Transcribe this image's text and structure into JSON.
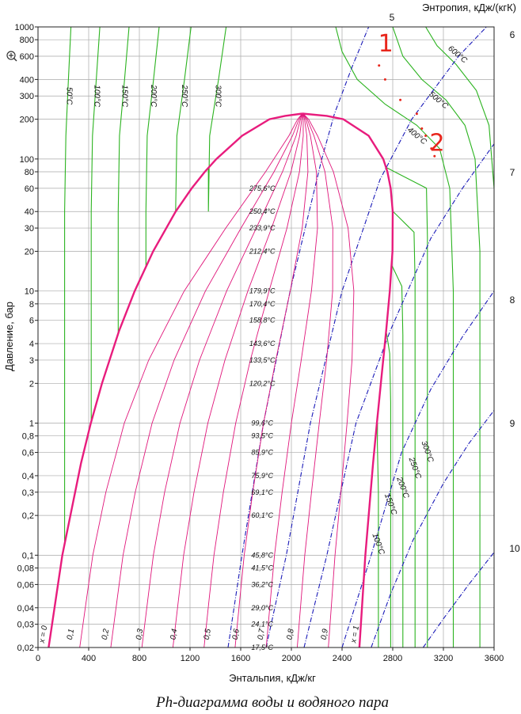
{
  "chart_data": {
    "type": "line",
    "title": "Ph-диаграмма воды и водяного пара",
    "xlabel": "Энтальпия, кДж/кг",
    "ylabel": "Давление, бар",
    "entropy_axis_label": "Энтропия, кДж/(кгК)",
    "xlim": [
      0,
      3600
    ],
    "ylim": [
      0.02,
      1000
    ],
    "yscale": "log",
    "grid": true,
    "x_ticks": [
      "0",
      "400",
      "800",
      "1200",
      "1600",
      "2000",
      "2400",
      "2800",
      "3200",
      "3600"
    ],
    "y_ticks": [
      {
        "v": 1000,
        "label": "1000"
      },
      {
        "v": 800,
        "label": "800"
      },
      {
        "v": 600,
        "label": "600"
      },
      {
        "v": 400,
        "label": "400"
      },
      {
        "v": 300,
        "label": "300"
      },
      {
        "v": 200,
        "label": "200"
      },
      {
        "v": 100,
        "label": "100"
      },
      {
        "v": 80,
        "label": "80"
      },
      {
        "v": 60,
        "label": "60"
      },
      {
        "v": 40,
        "label": "40"
      },
      {
        "v": 30,
        "label": "30"
      },
      {
        "v": 20,
        "label": "20"
      },
      {
        "v": 10,
        "label": "10"
      },
      {
        "v": 8,
        "label": "8"
      },
      {
        "v": 6,
        "label": "6"
      },
      {
        "v": 4,
        "label": "4"
      },
      {
        "v": 3,
        "label": "3"
      },
      {
        "v": 2,
        "label": "2"
      },
      {
        "v": 1,
        "label": "1"
      },
      {
        "v": 0.8,
        "label": "0,8"
      },
      {
        "v": 0.6,
        "label": "0,6"
      },
      {
        "v": 0.4,
        "label": "0,4"
      },
      {
        "v": 0.3,
        "label": "0,3"
      },
      {
        "v": 0.2,
        "label": "0,2"
      },
      {
        "v": 0.1,
        "label": "0,1"
      },
      {
        "v": 0.08,
        "label": "0,08"
      },
      {
        "v": 0.06,
        "label": "0,06"
      },
      {
        "v": 0.04,
        "label": "0,04"
      },
      {
        "v": 0.03,
        "label": "0,03"
      },
      {
        "v": 0.02,
        "label": "0,02"
      }
    ],
    "saturation_dome": {
      "critical_point": [
        2087,
        220.6
      ],
      "liquid_line": [
        [
          84,
          0.02
        ],
        [
          192,
          0.1
        ],
        [
          340,
          0.5
        ],
        [
          417,
          1
        ],
        [
          505,
          2
        ],
        [
          640,
          5
        ],
        [
          763,
          10
        ],
        [
          909,
          20
        ],
        [
          1087,
          40
        ],
        [
          1213,
          60
        ],
        [
          1317,
          80
        ],
        [
          1408,
          100
        ],
        [
          1611,
          150
        ],
        [
          1827,
          200
        ],
        [
          1950,
          212
        ],
        [
          2087,
          220.6
        ]
      ],
      "vapor_line": [
        [
          2537,
          0.02
        ],
        [
          2584,
          0.1
        ],
        [
          2645,
          0.5
        ],
        [
          2675,
          1
        ],
        [
          2706,
          2
        ],
        [
          2748,
          5
        ],
        [
          2777,
          10
        ],
        [
          2798,
          20
        ],
        [
          2800,
          40
        ],
        [
          2784,
          60
        ],
        [
          2758,
          80
        ],
        [
          2725,
          100
        ],
        [
          2610,
          150
        ],
        [
          2410,
          200
        ],
        [
          2280,
          212
        ],
        [
          2087,
          220.6
        ]
      ]
    },
    "quality_lines": [
      "x = 0",
      "0,1",
      "0,2",
      "0,3",
      "0,4",
      "0,5",
      "0,6",
      "0,7",
      "0,8",
      "0,9",
      "x = 1"
    ],
    "saturation_temperatures": [
      {
        "p": 60,
        "label": "275,6°C"
      },
      {
        "p": 40,
        "label": "250,4°C"
      },
      {
        "p": 30,
        "label": "233,9°C"
      },
      {
        "p": 20,
        "label": "212,4°C"
      },
      {
        "p": 10,
        "label": "179,9°C"
      },
      {
        "p": 8,
        "label": "170,4°C"
      },
      {
        "p": 6,
        "label": "158,8°C"
      },
      {
        "p": 4,
        "label": "143,6°C"
      },
      {
        "p": 3,
        "label": "133,5°C"
      },
      {
        "p": 2,
        "label": "120,2°C"
      },
      {
        "p": 1,
        "label": "99,6°C"
      },
      {
        "p": 0.8,
        "label": "93,5°C"
      },
      {
        "p": 0.6,
        "label": "85,9°C"
      },
      {
        "p": 0.4,
        "label": "75,9°C"
      },
      {
        "p": 0.3,
        "label": "69,1°C"
      },
      {
        "p": 0.2,
        "label": "60,1°C"
      },
      {
        "p": 0.1,
        "label": "45,8°C"
      },
      {
        "p": 0.08,
        "label": "41,5°C"
      },
      {
        "p": 0.06,
        "label": "36,2°C"
      },
      {
        "p": 0.04,
        "label": "29,0°C"
      },
      {
        "p": 0.03,
        "label": "24,1°C"
      },
      {
        "p": 0.02,
        "label": "17,5°C"
      }
    ],
    "isotherms_liquid": [
      {
        "label": "50°C",
        "h": 210
      },
      {
        "label": "100°C",
        "h": 420
      },
      {
        "label": "150°C",
        "h": 633
      },
      {
        "label": "200°C",
        "h": 852
      },
      {
        "label": "250°C",
        "h": 1086
      },
      {
        "label": "300°C",
        "h": 1345
      }
    ],
    "isotherms_vapor": [
      {
        "label": "100°C",
        "h": 2687
      },
      {
        "label": "150°C",
        "h": 2784
      },
      {
        "label": "200°C",
        "h": 2880
      },
      {
        "label": "250°C",
        "h": 2976
      },
      {
        "label": "300°C",
        "h": 3074
      },
      {
        "label": "400°C",
        "h": 3278
      },
      {
        "label": "500°C",
        "h": 3488
      },
      {
        "label": "600°C",
        "h": 3705
      }
    ],
    "isentropes": [
      {
        "label": "5",
        "points": [
          [
            1500,
            0.02
          ],
          [
            1610,
            0.1
          ],
          [
            1780,
            1
          ],
          [
            1990,
            10
          ],
          [
            2240,
            100
          ],
          [
            2340,
            220
          ],
          [
            2480,
            500
          ],
          [
            2610,
            1000
          ]
        ]
      },
      {
        "label": "6",
        "points": [
          [
            1800,
            0.02
          ],
          [
            1960,
            0.1
          ],
          [
            2150,
            1
          ],
          [
            2400,
            10
          ],
          [
            2700,
            70
          ],
          [
            2950,
            200
          ],
          [
            3320,
            600
          ],
          [
            3540,
            1000
          ]
        ]
      },
      {
        "label": "7",
        "points": [
          [
            2100,
            0.02
          ],
          [
            2280,
            0.1
          ],
          [
            2510,
            1
          ],
          [
            2780,
            5
          ],
          [
            3100,
            25
          ],
          [
            3350,
            60
          ],
          [
            3600,
            130
          ]
        ]
      },
      {
        "label": "8",
        "points": [
          [
            2400,
            0.02
          ],
          [
            2630,
            0.1
          ],
          [
            2870,
            0.6
          ],
          [
            3100,
            1.8
          ],
          [
            3350,
            4.5
          ],
          [
            3600,
            10
          ]
        ]
      },
      {
        "label": "9",
        "points": [
          [
            2630,
            0.02
          ],
          [
            2780,
            0.05
          ],
          [
            2960,
            0.13
          ],
          [
            3200,
            0.35
          ],
          [
            3400,
            0.7
          ],
          [
            3600,
            1.25
          ]
        ]
      },
      {
        "label": "10",
        "points": [
          [
            3040,
            0.02
          ],
          [
            3200,
            0.033
          ],
          [
            3400,
            0.06
          ],
          [
            3600,
            0.105
          ]
        ]
      }
    ],
    "annotations": [
      {
        "label": "1",
        "h": 2745,
        "p": 650
      },
      {
        "label": "2",
        "h": 3150,
        "p": 115
      }
    ],
    "process_dots": [
      [
        2692,
        510
      ],
      [
        2740,
        400
      ],
      [
        2860,
        280
      ],
      [
        2990,
        220
      ],
      [
        3030,
        170
      ],
      [
        3060,
        150
      ],
      [
        3130,
        105
      ],
      [
        3105,
        120
      ]
    ]
  }
}
